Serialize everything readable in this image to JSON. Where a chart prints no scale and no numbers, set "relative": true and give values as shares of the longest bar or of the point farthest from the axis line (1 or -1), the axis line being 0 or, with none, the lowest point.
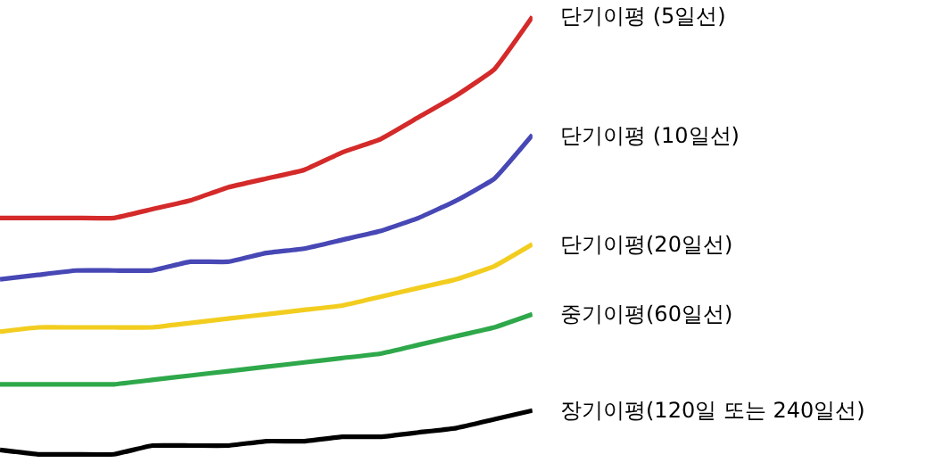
{
  "chart_data": {
    "type": "line",
    "relative": true,
    "categories": [
      null,
      null,
      null,
      null,
      null,
      null,
      null,
      null,
      null,
      null,
      null,
      null,
      null,
      null,
      null
    ],
    "legend": false,
    "marker": "none",
    "line_style": "solid",
    "series": [
      {
        "name": "단기이평 (5일선)",
        "color": "#d42a2a",
        "values": [
          0.54,
          0.54,
          0.54,
          0.54,
          0.56,
          0.58,
          0.61,
          0.63,
          0.65,
          0.69,
          0.72,
          0.77,
          0.82,
          0.88,
          1
        ]
      },
      {
        "name": "단기이평 (10일선)",
        "color": "#4747b5",
        "values": [
          0.4,
          0.41,
          0.42,
          0.42,
          0.42,
          0.44,
          0.44,
          0.46,
          0.47,
          0.49,
          0.51,
          0.54,
          0.58,
          0.63,
          0.73
        ]
      },
      {
        "name": "단기이평(20일선)",
        "color": "#f2cd1f",
        "values": [
          0.28,
          0.29,
          0.29,
          0.29,
          0.29,
          0.3,
          0.31,
          0.32,
          0.33,
          0.34,
          0.36,
          0.38,
          0.4,
          0.43,
          0.48
        ]
      },
      {
        "name": "중기이평(60일선)",
        "color": "#2ea84a",
        "values": [
          0.16,
          0.16,
          0.16,
          0.16,
          0.17,
          0.18,
          0.19,
          0.2,
          0.21,
          0.22,
          0.23,
          0.25,
          0.27,
          0.29,
          0.32
        ]
      },
      {
        "name": "장기이평(120일 또는 240일선)",
        "color": "#000000",
        "values": [
          0.01,
          0,
          0,
          0,
          0.02,
          0.02,
          0.02,
          0.03,
          0.03,
          0.04,
          0.04,
          0.05,
          0.06,
          0.08,
          0.1
        ]
      }
    ]
  }
}
